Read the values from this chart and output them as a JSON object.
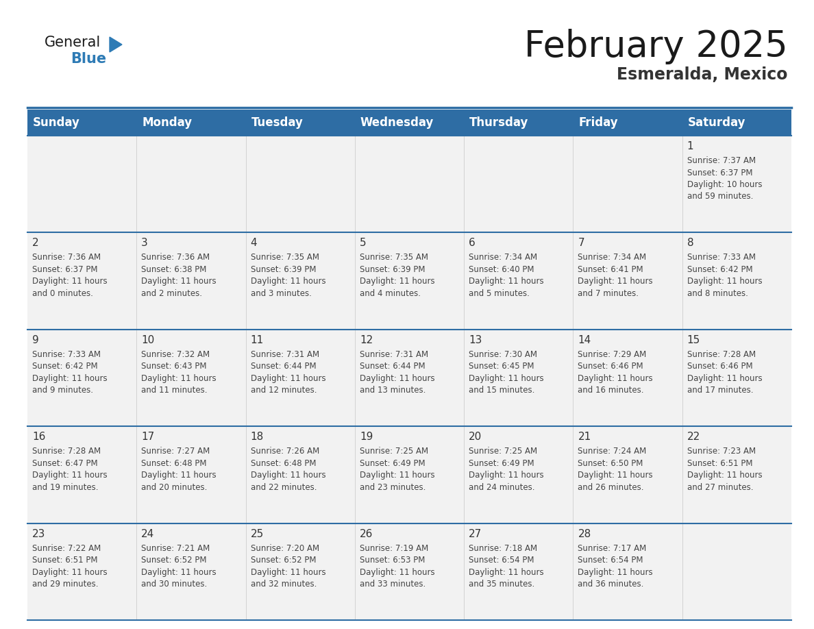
{
  "title": "February 2025",
  "subtitle": "Esmeralda, Mexico",
  "header_bg": "#2E6DA4",
  "header_text": "#FFFFFF",
  "cell_bg": "#F2F2F2",
  "separator_color": "#2E6DA4",
  "days_of_week": [
    "Sunday",
    "Monday",
    "Tuesday",
    "Wednesday",
    "Thursday",
    "Friday",
    "Saturday"
  ],
  "calendar_data": [
    [
      {
        "day": "",
        "sunrise": "",
        "sunset": "",
        "daylight_h": "",
        "daylight_m": ""
      },
      {
        "day": "",
        "sunrise": "",
        "sunset": "",
        "daylight_h": "",
        "daylight_m": ""
      },
      {
        "day": "",
        "sunrise": "",
        "sunset": "",
        "daylight_h": "",
        "daylight_m": ""
      },
      {
        "day": "",
        "sunrise": "",
        "sunset": "",
        "daylight_h": "",
        "daylight_m": ""
      },
      {
        "day": "",
        "sunrise": "",
        "sunset": "",
        "daylight_h": "",
        "daylight_m": ""
      },
      {
        "day": "",
        "sunrise": "",
        "sunset": "",
        "daylight_h": "",
        "daylight_m": ""
      },
      {
        "day": "1",
        "sunrise": "7:37 AM",
        "sunset": "6:37 PM",
        "daylight_h": "10 hours",
        "daylight_m": "and 59 minutes."
      }
    ],
    [
      {
        "day": "2",
        "sunrise": "7:36 AM",
        "sunset": "6:37 PM",
        "daylight_h": "11 hours",
        "daylight_m": "and 0 minutes."
      },
      {
        "day": "3",
        "sunrise": "7:36 AM",
        "sunset": "6:38 PM",
        "daylight_h": "11 hours",
        "daylight_m": "and 2 minutes."
      },
      {
        "day": "4",
        "sunrise": "7:35 AM",
        "sunset": "6:39 PM",
        "daylight_h": "11 hours",
        "daylight_m": "and 3 minutes."
      },
      {
        "day": "5",
        "sunrise": "7:35 AM",
        "sunset": "6:39 PM",
        "daylight_h": "11 hours",
        "daylight_m": "and 4 minutes."
      },
      {
        "day": "6",
        "sunrise": "7:34 AM",
        "sunset": "6:40 PM",
        "daylight_h": "11 hours",
        "daylight_m": "and 5 minutes."
      },
      {
        "day": "7",
        "sunrise": "7:34 AM",
        "sunset": "6:41 PM",
        "daylight_h": "11 hours",
        "daylight_m": "and 7 minutes."
      },
      {
        "day": "8",
        "sunrise": "7:33 AM",
        "sunset": "6:42 PM",
        "daylight_h": "11 hours",
        "daylight_m": "and 8 minutes."
      }
    ],
    [
      {
        "day": "9",
        "sunrise": "7:33 AM",
        "sunset": "6:42 PM",
        "daylight_h": "11 hours",
        "daylight_m": "and 9 minutes."
      },
      {
        "day": "10",
        "sunrise": "7:32 AM",
        "sunset": "6:43 PM",
        "daylight_h": "11 hours",
        "daylight_m": "and 11 minutes."
      },
      {
        "day": "11",
        "sunrise": "7:31 AM",
        "sunset": "6:44 PM",
        "daylight_h": "11 hours",
        "daylight_m": "and 12 minutes."
      },
      {
        "day": "12",
        "sunrise": "7:31 AM",
        "sunset": "6:44 PM",
        "daylight_h": "11 hours",
        "daylight_m": "and 13 minutes."
      },
      {
        "day": "13",
        "sunrise": "7:30 AM",
        "sunset": "6:45 PM",
        "daylight_h": "11 hours",
        "daylight_m": "and 15 minutes."
      },
      {
        "day": "14",
        "sunrise": "7:29 AM",
        "sunset": "6:46 PM",
        "daylight_h": "11 hours",
        "daylight_m": "and 16 minutes."
      },
      {
        "day": "15",
        "sunrise": "7:28 AM",
        "sunset": "6:46 PM",
        "daylight_h": "11 hours",
        "daylight_m": "and 17 minutes."
      }
    ],
    [
      {
        "day": "16",
        "sunrise": "7:28 AM",
        "sunset": "6:47 PM",
        "daylight_h": "11 hours",
        "daylight_m": "and 19 minutes."
      },
      {
        "day": "17",
        "sunrise": "7:27 AM",
        "sunset": "6:48 PM",
        "daylight_h": "11 hours",
        "daylight_m": "and 20 minutes."
      },
      {
        "day": "18",
        "sunrise": "7:26 AM",
        "sunset": "6:48 PM",
        "daylight_h": "11 hours",
        "daylight_m": "and 22 minutes."
      },
      {
        "day": "19",
        "sunrise": "7:25 AM",
        "sunset": "6:49 PM",
        "daylight_h": "11 hours",
        "daylight_m": "and 23 minutes."
      },
      {
        "day": "20",
        "sunrise": "7:25 AM",
        "sunset": "6:49 PM",
        "daylight_h": "11 hours",
        "daylight_m": "and 24 minutes."
      },
      {
        "day": "21",
        "sunrise": "7:24 AM",
        "sunset": "6:50 PM",
        "daylight_h": "11 hours",
        "daylight_m": "and 26 minutes."
      },
      {
        "day": "22",
        "sunrise": "7:23 AM",
        "sunset": "6:51 PM",
        "daylight_h": "11 hours",
        "daylight_m": "and 27 minutes."
      }
    ],
    [
      {
        "day": "23",
        "sunrise": "7:22 AM",
        "sunset": "6:51 PM",
        "daylight_h": "11 hours",
        "daylight_m": "and 29 minutes."
      },
      {
        "day": "24",
        "sunrise": "7:21 AM",
        "sunset": "6:52 PM",
        "daylight_h": "11 hours",
        "daylight_m": "and 30 minutes."
      },
      {
        "day": "25",
        "sunrise": "7:20 AM",
        "sunset": "6:52 PM",
        "daylight_h": "11 hours",
        "daylight_m": "and 32 minutes."
      },
      {
        "day": "26",
        "sunrise": "7:19 AM",
        "sunset": "6:53 PM",
        "daylight_h": "11 hours",
        "daylight_m": "and 33 minutes."
      },
      {
        "day": "27",
        "sunrise": "7:18 AM",
        "sunset": "6:54 PM",
        "daylight_h": "11 hours",
        "daylight_m": "and 35 minutes."
      },
      {
        "day": "28",
        "sunrise": "7:17 AM",
        "sunset": "6:54 PM",
        "daylight_h": "11 hours",
        "daylight_m": "and 36 minutes."
      },
      {
        "day": "",
        "sunrise": "",
        "sunset": "",
        "daylight_h": "",
        "daylight_m": ""
      }
    ]
  ],
  "title_fontsize": 38,
  "subtitle_fontsize": 17,
  "day_number_fontsize": 11,
  "cell_text_fontsize": 8.5,
  "header_fontsize": 12,
  "logo_general_fontsize": 15,
  "logo_blue_fontsize": 15
}
